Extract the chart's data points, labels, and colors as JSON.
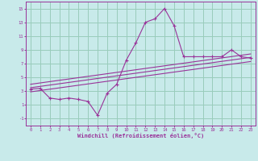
{
  "xlabel": "Windchill (Refroidissement éolien,°C)",
  "background_color": "#c8eaea",
  "grid_color": "#99ccbb",
  "line_color": "#993399",
  "xlim": [
    -0.5,
    23.5
  ],
  "ylim": [
    -2.0,
    16.0
  ],
  "xticks": [
    0,
    1,
    2,
    3,
    4,
    5,
    6,
    7,
    8,
    9,
    10,
    11,
    12,
    13,
    14,
    15,
    16,
    17,
    18,
    19,
    20,
    21,
    22,
    23
  ],
  "yticks": [
    -1,
    1,
    3,
    5,
    7,
    9,
    11,
    13,
    15
  ],
  "main_x": [
    0,
    1,
    2,
    3,
    4,
    5,
    6,
    7,
    8,
    9,
    10,
    11,
    12,
    13,
    14,
    15,
    16,
    17,
    18,
    19,
    20,
    21,
    22,
    23
  ],
  "main_y": [
    3.3,
    3.4,
    2.0,
    1.8,
    2.0,
    1.8,
    1.5,
    -0.5,
    2.7,
    4.0,
    7.5,
    10.0,
    13.0,
    13.5,
    15.0,
    12.5,
    8.0,
    8.0,
    8.0,
    8.0,
    8.0,
    9.0,
    8.0,
    7.8
  ],
  "line1_x": [
    0,
    23
  ],
  "line1_y": [
    3.5,
    7.9
  ],
  "line2_x": [
    0,
    23
  ],
  "line2_y": [
    4.0,
    8.4
  ],
  "line3_x": [
    0,
    23
  ],
  "line3_y": [
    2.9,
    7.3
  ]
}
